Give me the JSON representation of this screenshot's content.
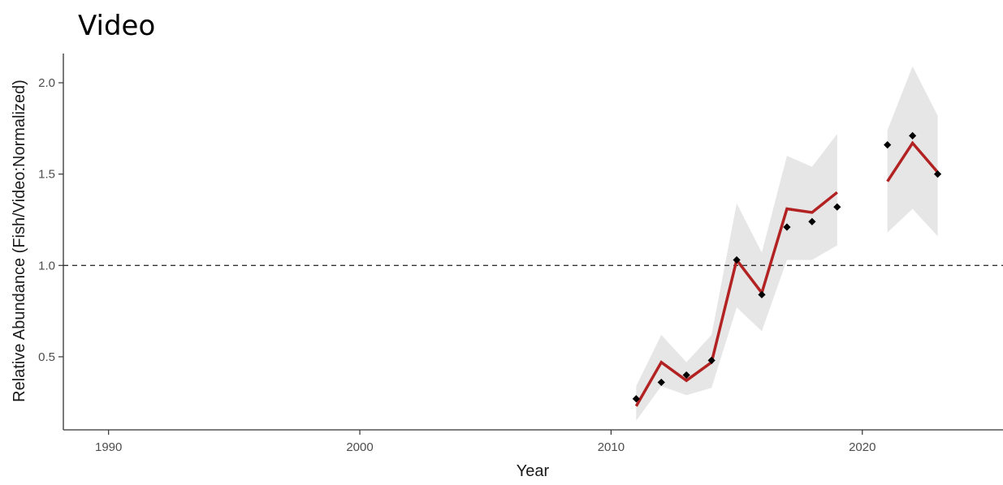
{
  "chart_data": {
    "type": "line",
    "title": "Video",
    "xlabel": "Year",
    "ylabel": "Relative Abundance (Fish/Video:Normalized)",
    "xlim": [
      1988.2,
      2025.6
    ],
    "ylim": [
      0.1,
      2.16
    ],
    "x_ticks": [
      1990,
      2000,
      2010,
      2020
    ],
    "y_ticks": [
      0.5,
      1.0,
      1.5,
      2.0
    ],
    "x_tick_labels": [
      "1990",
      "2000",
      "2010",
      "2020"
    ],
    "y_tick_labels": [
      "0.5",
      "1.0",
      "1.5",
      "2.0"
    ],
    "reference_line": {
      "y": 1.0,
      "style": "dashed"
    },
    "grid": false,
    "colors": {
      "line": "#b22222",
      "band": "#e6e6e6",
      "points": "#000000",
      "axis": "#333333"
    },
    "series": [
      {
        "type": "ribbon",
        "segments": [
          [
            {
              "x": 2011,
              "lower": 0.15,
              "upper": 0.34
            },
            {
              "x": 2012,
              "lower": 0.34,
              "upper": 0.62
            },
            {
              "x": 2013,
              "lower": 0.29,
              "upper": 0.47
            },
            {
              "x": 2014,
              "lower": 0.33,
              "upper": 0.62
            },
            {
              "x": 2015,
              "lower": 0.77,
              "upper": 1.34
            },
            {
              "x": 2016,
              "lower": 0.64,
              "upper": 1.07
            },
            {
              "x": 2017,
              "lower": 1.03,
              "upper": 1.6
            },
            {
              "x": 2018,
              "lower": 1.03,
              "upper": 1.54
            },
            {
              "x": 2019,
              "lower": 1.11,
              "upper": 1.72
            }
          ],
          [
            {
              "x": 2021,
              "lower": 1.18,
              "upper": 1.74
            },
            {
              "x": 2022,
              "lower": 1.31,
              "upper": 2.09
            },
            {
              "x": 2023,
              "lower": 1.16,
              "upper": 1.82
            }
          ]
        ]
      },
      {
        "type": "line",
        "segments": [
          [
            {
              "x": 2011,
              "y": 0.23
            },
            {
              "x": 2012,
              "y": 0.47
            },
            {
              "x": 2013,
              "y": 0.37
            },
            {
              "x": 2014,
              "y": 0.47
            },
            {
              "x": 2015,
              "y": 1.03
            },
            {
              "x": 2016,
              "y": 0.85
            },
            {
              "x": 2017,
              "y": 1.31
            },
            {
              "x": 2018,
              "y": 1.29
            },
            {
              "x": 2019,
              "y": 1.4
            }
          ],
          [
            {
              "x": 2021,
              "y": 1.46
            },
            {
              "x": 2022,
              "y": 1.67
            },
            {
              "x": 2023,
              "y": 1.51
            }
          ]
        ]
      },
      {
        "type": "scatter",
        "points": [
          {
            "x": 2011,
            "y": 0.27
          },
          {
            "x": 2012,
            "y": 0.36
          },
          {
            "x": 2013,
            "y": 0.4
          },
          {
            "x": 2014,
            "y": 0.48
          },
          {
            "x": 2015,
            "y": 1.03
          },
          {
            "x": 2016,
            "y": 0.84
          },
          {
            "x": 2017,
            "y": 1.21
          },
          {
            "x": 2018,
            "y": 1.24
          },
          {
            "x": 2019,
            "y": 1.32
          },
          {
            "x": 2021,
            "y": 1.66
          },
          {
            "x": 2022,
            "y": 1.71
          },
          {
            "x": 2023,
            "y": 1.5
          }
        ]
      }
    ]
  }
}
